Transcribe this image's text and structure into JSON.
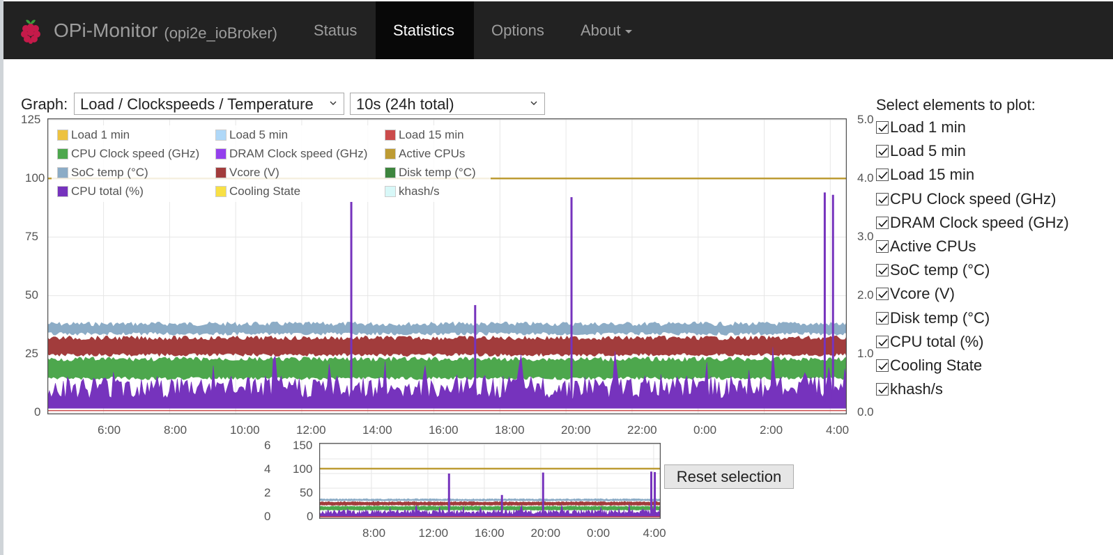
{
  "brand": {
    "name": "OPi-Monitor",
    "host": "(opi2e_ioBroker)"
  },
  "nav": {
    "status": "Status",
    "statistics": "Statistics",
    "options": "Options",
    "about": "About"
  },
  "graph": {
    "label": "Graph:",
    "type_selected": "Load / Clockspeeds / Temperature",
    "interval_selected": "10s (24h total)"
  },
  "panel": {
    "title": "Select elements to plot:",
    "items": [
      {
        "label": "Load 1 min",
        "checked": true
      },
      {
        "label": "Load 5 min",
        "checked": true
      },
      {
        "label": "Load 15 min",
        "checked": true
      },
      {
        "label": "CPU Clock speed (GHz)",
        "checked": true
      },
      {
        "label": "DRAM Clock speed (GHz)",
        "checked": true
      },
      {
        "label": "Active CPUs",
        "checked": true
      },
      {
        "label": "SoC temp (°C)",
        "checked": true
      },
      {
        "label": "Vcore (V)",
        "checked": true
      },
      {
        "label": "Disk temp (°C)",
        "checked": true
      },
      {
        "label": "CPU total (%)",
        "checked": true
      },
      {
        "label": "Cooling State",
        "checked": true
      },
      {
        "label": "khash/s",
        "checked": true
      }
    ]
  },
  "legend": [
    {
      "label": "Load 1 min",
      "color": "#edc240"
    },
    {
      "label": "Load 5 min",
      "color": "#afd8f8"
    },
    {
      "label": "Load 15 min",
      "color": "#cb4b4b"
    },
    {
      "label": "CPU Clock speed (GHz)",
      "color": "#4da74d"
    },
    {
      "label": "DRAM Clock speed (GHz)",
      "color": "#9440ed"
    },
    {
      "label": "Active CPUs",
      "color": "#bd9b33"
    },
    {
      "label": "SoC temp (°C)",
      "color": "#8cacc6"
    },
    {
      "label": "Vcore (V)",
      "color": "#a23c3c"
    },
    {
      "label": "Disk temp (°C)",
      "color": "#3d853d"
    },
    {
      "label": "CPU total (%)",
      "color": "#7633bd"
    },
    {
      "label": "Cooling State",
      "color": "#f8e045"
    },
    {
      "label": "khash/s",
      "color": "#d8f8f8"
    }
  ],
  "reset_label": "Reset selection",
  "chart_data": [
    {
      "type": "area",
      "role": "main",
      "y_left_ticks": [
        "125",
        "100",
        "75",
        "50",
        "25",
        "0"
      ],
      "y_right_ticks": [
        "5.0",
        "4.0",
        "3.0",
        "2.0",
        "1.0",
        "0.0"
      ],
      "x_ticks": [
        "6:00",
        "8:00",
        "10:00",
        "12:00",
        "14:00",
        "16:00",
        "18:00",
        "20:00",
        "22:00",
        "0:00",
        "2:00",
        "4:00"
      ],
      "ylim_left": [
        0,
        125
      ],
      "ylim_right": [
        0,
        5
      ],
      "grid": true,
      "legend_position": "top-left",
      "series_levels": [
        {
          "name": "Active CPUs",
          "value": 4.0,
          "axis": "right"
        },
        {
          "name": "SoC temp (°C)",
          "value": 37
        },
        {
          "name": "Vcore (V)",
          "value": 28
        },
        {
          "name": "CPU Clock speed (GHz)",
          "value": 20
        },
        {
          "name": "CPU total (%)",
          "value": 8
        },
        {
          "name": "Load 1 min",
          "value": 1
        }
      ],
      "cpu_total_spikes": [
        {
          "time": "13:30",
          "value": 90
        },
        {
          "time": "17:15",
          "value": 46
        },
        {
          "time": "20:10",
          "value": 92
        },
        {
          "time": "3:50",
          "value": 94
        },
        {
          "time": "4:05",
          "value": 93
        }
      ]
    },
    {
      "type": "area",
      "role": "overview",
      "y_left_ticks": [
        "6",
        "4",
        "2",
        "0"
      ],
      "y_right_ticks": [
        "150",
        "100",
        "50",
        "0"
      ],
      "x_ticks": [
        "8:00",
        "12:00",
        "16:00",
        "20:00",
        "0:00",
        "4:00"
      ],
      "grid": true
    }
  ]
}
